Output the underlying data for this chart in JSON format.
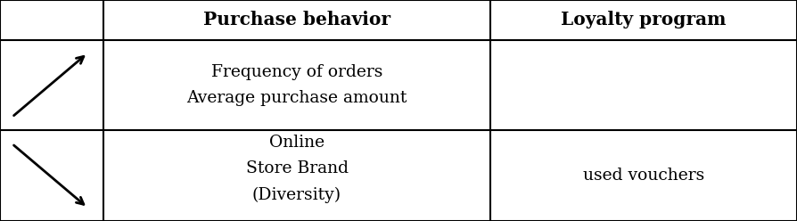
{
  "col_headers": [
    "",
    "Purchase behavior",
    "Loyalty program"
  ],
  "row1_purchase": "Frequency of orders\nAverage purchase amount",
  "row1_loyalty": "",
  "row2_purchase": "Online\nStore Brand\n(Diversity)",
  "row2_loyalty": "used vouchers",
  "bg_color": "#ffffff",
  "text_color": "#000000",
  "border_color": "#000000",
  "font_size": 13.5,
  "header_font_size": 14.5,
  "col_bounds": [
    0.0,
    0.13,
    0.615,
    1.0
  ],
  "row_bounds": [
    1.0,
    0.82,
    0.41,
    0.0
  ]
}
